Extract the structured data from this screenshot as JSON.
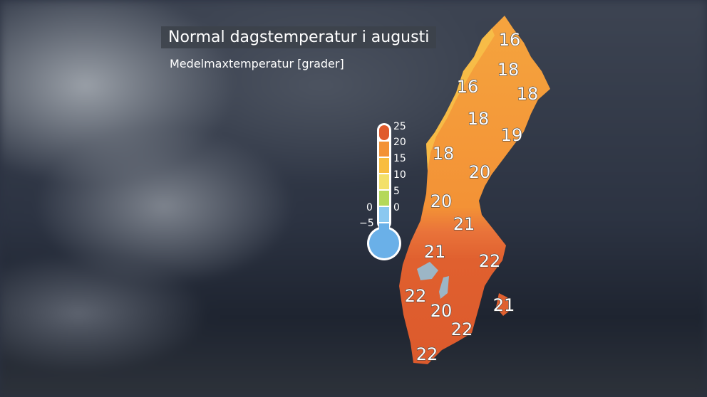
{
  "title": "Normal dagstemperatur i augusti",
  "subtitle": "Medelmaxtemperatur [grader]",
  "legend": {
    "labels": [
      "25",
      "20",
      "15",
      "10",
      "5",
      "0",
      "0",
      "−5"
    ],
    "segments": [
      {
        "range": "20–25",
        "color": "#e05a2b"
      },
      {
        "range": "15–20",
        "color": "#f39236"
      },
      {
        "range": "10–15",
        "color": "#f8bd40"
      },
      {
        "range": "5–10",
        "color": "#f3e06a"
      },
      {
        "range": "0–5",
        "color": "#b5d85a"
      },
      {
        "range": "-5–0",
        "color": "#8ac8f0"
      }
    ],
    "bulb_color": "#6ab0e8"
  },
  "values": [
    "16",
    "18",
    "18",
    "16",
    "18",
    "19",
    "18",
    "20",
    "20",
    "21",
    "21",
    "22",
    "22",
    "20",
    "21",
    "22",
    "22"
  ]
}
